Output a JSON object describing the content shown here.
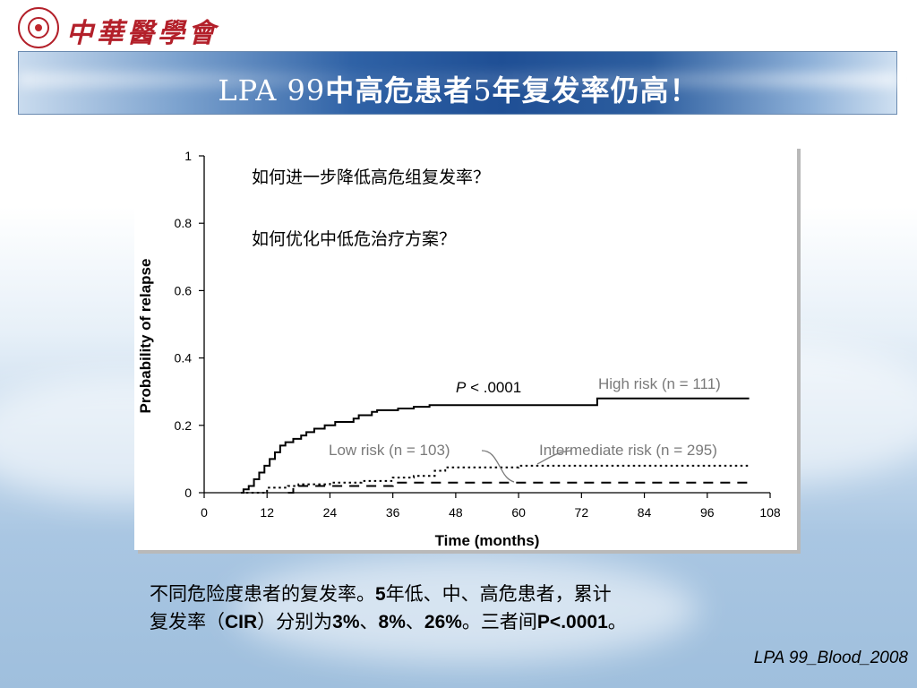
{
  "header": {
    "logo_name": "中華醫學會",
    "title_prefix": "LPA 99",
    "title_main": "中高危患者",
    "title_num": "5",
    "title_rest": "年复发率仍高！"
  },
  "chart_data": {
    "type": "line",
    "xlabel": "Time (months)",
    "ylabel": "Probability of relapse",
    "xlim": [
      0,
      108
    ],
    "ylim": [
      0,
      1
    ],
    "x_ticks": [
      "0",
      "12",
      "24",
      "36",
      "48",
      "60",
      "72",
      "84",
      "96",
      "108"
    ],
    "y_ticks": [
      "0",
      "0.2",
      "0.4",
      "0.6",
      "0.8",
      "1"
    ],
    "grid": false,
    "annotations": {
      "question_1": "如何进一步降低高危组复发率？",
      "question_2": "如何优化中低危治疗方案？",
      "p_italic": "P",
      "p_rest": " < .0001"
    },
    "series": [
      {
        "name": "High risk (n = 111)",
        "style": "solid",
        "color": "#000000",
        "points": [
          [
            7,
            0
          ],
          [
            7.5,
            0.01
          ],
          [
            8.5,
            0.02
          ],
          [
            9.5,
            0.04
          ],
          [
            10.5,
            0.06
          ],
          [
            11.5,
            0.08
          ],
          [
            12.5,
            0.1
          ],
          [
            13.5,
            0.12
          ],
          [
            14.5,
            0.14
          ],
          [
            15.5,
            0.15
          ],
          [
            17,
            0.16
          ],
          [
            18.5,
            0.17
          ],
          [
            19.5,
            0.18
          ],
          [
            21,
            0.19
          ],
          [
            23,
            0.2
          ],
          [
            25,
            0.21
          ],
          [
            28.5,
            0.22
          ],
          [
            29.5,
            0.23
          ],
          [
            32,
            0.24
          ],
          [
            33,
            0.245
          ],
          [
            37,
            0.25
          ],
          [
            40,
            0.255
          ],
          [
            43,
            0.26
          ],
          [
            73,
            0.26
          ],
          [
            75,
            0.28
          ],
          [
            104,
            0.28
          ]
        ]
      },
      {
        "name": "Intermediate risk (n = 295)",
        "style": "dotted",
        "color": "#000000",
        "points": [
          [
            8,
            0
          ],
          [
            12,
            0.015
          ],
          [
            16,
            0.02
          ],
          [
            18,
            0.025
          ],
          [
            24,
            0.03
          ],
          [
            30,
            0.035
          ],
          [
            36,
            0.045
          ],
          [
            40,
            0.05
          ],
          [
            44,
            0.065
          ],
          [
            46,
            0.075
          ],
          [
            52,
            0.075
          ],
          [
            56,
            0.075
          ],
          [
            60,
            0.08
          ],
          [
            62,
            0.08
          ],
          [
            104,
            0.08
          ]
        ]
      },
      {
        "name": "Low risk (n = 103)",
        "style": "dashed",
        "color": "#000000",
        "points": [
          [
            16,
            0
          ],
          [
            17,
            0.015
          ],
          [
            18,
            0.02
          ],
          [
            34,
            0.02
          ],
          [
            36,
            0.03
          ],
          [
            104,
            0.03
          ]
        ]
      }
    ]
  },
  "caption": {
    "line1_a": "不同危险度患者的复发率。",
    "line1_b": "5",
    "line1_c": "年低、中、高危患者，累计",
    "line2_a": "复发率（",
    "line2_b": "CIR",
    "line2_c": "）分别为",
    "line2_d": "3%",
    "line2_e": "、",
    "line2_f": "8%",
    "line2_g": "、",
    "line2_h": "26%",
    "line2_i": "。三者间",
    "line2_j": "P<.0001",
    "line2_k": "。"
  },
  "citation": "LPA 99_Blood_2008"
}
